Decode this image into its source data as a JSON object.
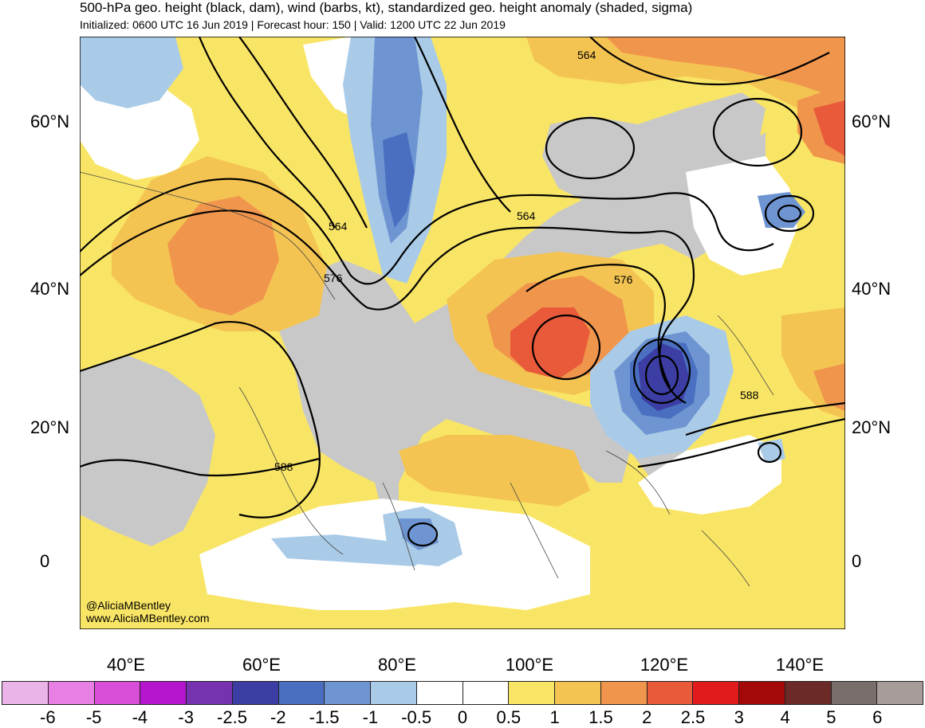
{
  "header": {
    "title": "500-hPa geo. height (black, dam), wind (barbs, kt), standardized geo. height anomaly (shaded, sigma)",
    "subtitle": "Initialized: 0600 UTC 16 Jun 2019 | Forecast hour: 150 | Valid: 1200 UTC 22 Jun 2019"
  },
  "axes": {
    "lat_labels": [
      "60°N",
      "40°N",
      "20°N",
      "0"
    ],
    "lon_labels": [
      "40°E",
      "60°E",
      "80°E",
      "100°E",
      "120°E",
      "140°E"
    ]
  },
  "contour_labels": [
    "564",
    "564",
    "564",
    "576",
    "576",
    "588",
    "588"
  ],
  "credit": {
    "handle": "@AliciaMBentley",
    "site": "www.AliciaMBentley.com"
  },
  "colorbar": {
    "colors": [
      "#ebb4e8",
      "#e87fe5",
      "#d84ed8",
      "#b415cd",
      "#7732b0",
      "#3c3ea4",
      "#4a6fc0",
      "#6e95d2",
      "#a9cbe8",
      "#ffffff",
      "#ffffff",
      "#f9e565",
      "#f4c452",
      "#f0954c",
      "#e85a3a",
      "#e11b1b",
      "#a30909",
      "#6c2a27",
      "#7a6e6c",
      "#a89c9b"
    ],
    "ticks": [
      "-6",
      "-5",
      "-4",
      "-3",
      "-2.5",
      "-2",
      "-1.5",
      "-1",
      "-0.5",
      "0",
      "0.5",
      "1",
      "1.5",
      "2",
      "2.5",
      "3",
      "4",
      "5",
      "6"
    ]
  },
  "anomaly_colors": {
    "neutral": "#c8c8c8",
    "positive_weak": "#f9e565",
    "positive_mid": "#f4c452",
    "positive_strong": "#f0954c",
    "positive_max": "#e85a3a",
    "negative_weak": "#a9cbe8",
    "negative_mid": "#6e95d2",
    "negative_strong": "#4a6fc0",
    "negative_max": "#3c3ea4"
  }
}
